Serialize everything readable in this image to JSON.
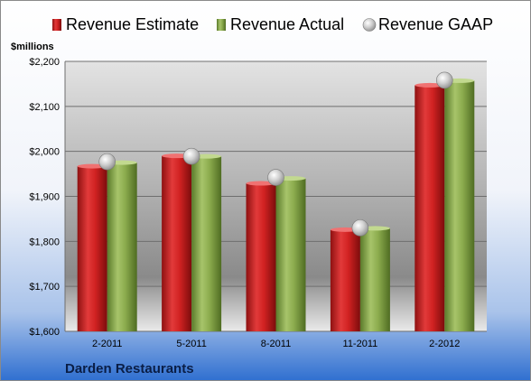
{
  "chart_data": {
    "type": "bar",
    "title": "",
    "company_label": "Darden Restaurants",
    "ylabel": "$millions",
    "xlabel": "",
    "categories": [
      "2-2011",
      "5-2011",
      "8-2011",
      "11-2011",
      "2-2012"
    ],
    "ylim": [
      1600,
      2200
    ],
    "yticks": [
      1600,
      1700,
      1800,
      1900,
      2000,
      2100,
      2200
    ],
    "ytick_labels": [
      "$1,600",
      "$1,700",
      "$1,800",
      "$1,900",
      "$2,000",
      "$2,100",
      "$2,200"
    ],
    "grid": true,
    "legend_position": "top",
    "series": [
      {
        "name": "Revenue Estimate",
        "type": "bar",
        "color": "#d42a2a",
        "values": [
          1967,
          1990,
          1929,
          1826,
          2147
        ]
      },
      {
        "name": "Revenue Actual",
        "type": "bar",
        "color": "#8aaa4c",
        "values": [
          1975,
          1989,
          1940,
          1829,
          2157
        ]
      },
      {
        "name": "Revenue GAAP",
        "type": "scatter",
        "color": "#b8b8b8",
        "values": [
          1977,
          1989,
          1942,
          1830,
          2158
        ]
      }
    ]
  }
}
